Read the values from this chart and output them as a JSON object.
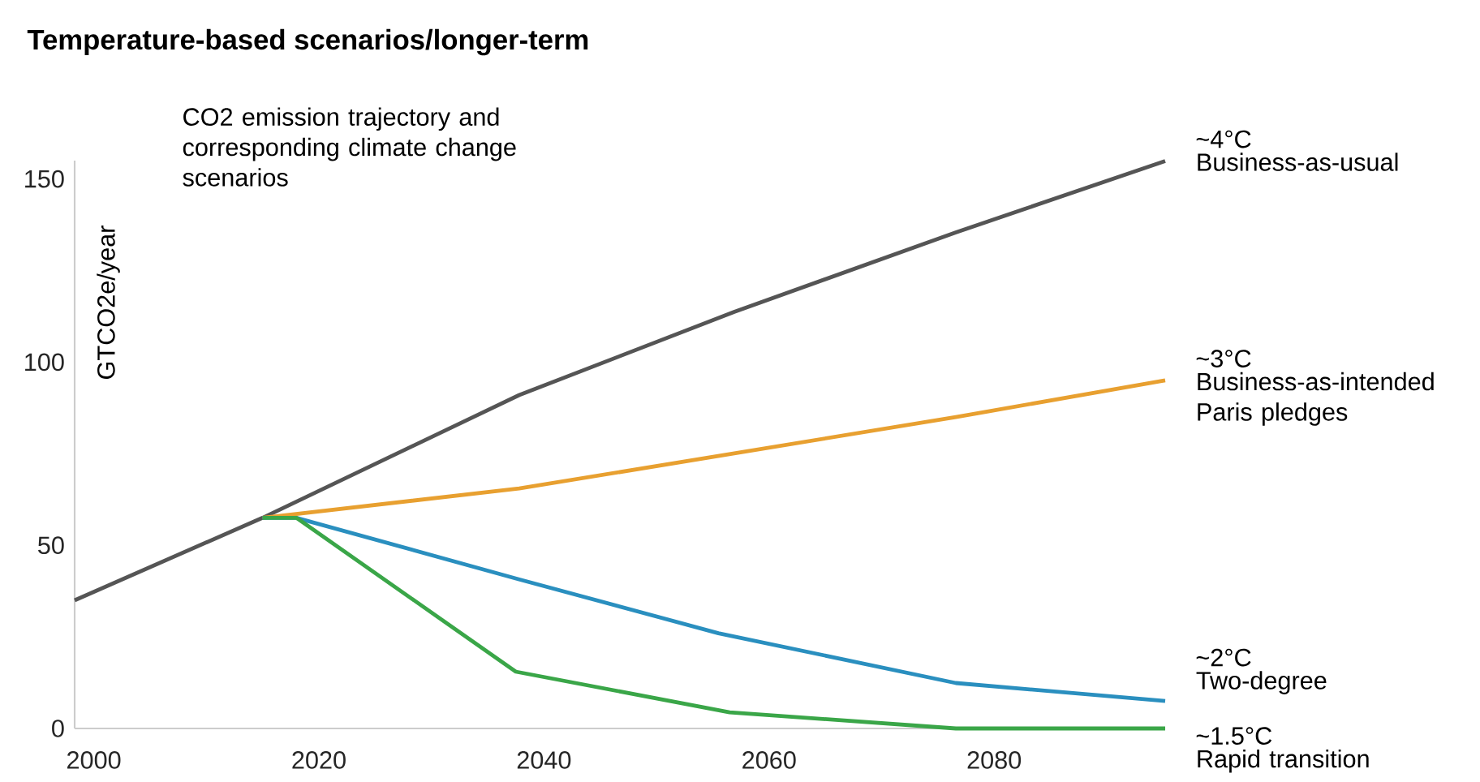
{
  "chart_data": {
    "type": "line",
    "title": "Temperature-based scenarios/longer-term",
    "ylabel": "GTCO2e/year",
    "annotations": [
      "CO2 emission trajectory and corresponding climate change scenarios",
      "~4°C",
      "~3°C",
      "~2°C",
      "~1.5°C"
    ],
    "series": [
      {
        "name": "Business-as-usual",
        "color": "#555555",
        "x": [
          1998.3,
          2015,
          2037.8,
          2056.9,
          2076.6,
          2095.2
        ],
        "values": [
          35,
          57.5,
          91,
          113.7,
          135.4,
          154.9
        ]
      },
      {
        "name": "Business-as-intended Paris pledges",
        "color": "#e8a030",
        "x": [
          2015,
          2037.8,
          2076.6,
          2095.2
        ],
        "values": [
          57.5,
          65.5,
          85,
          95
        ]
      },
      {
        "name": "Two-degree",
        "color": "#2a8fbf",
        "x": [
          2015,
          2018,
          2037.8,
          2055.5,
          2076.6,
          2095.2
        ],
        "values": [
          57.5,
          57.5,
          40.7,
          26,
          12.4,
          7.5
        ]
      },
      {
        "name": "Rapid transition",
        "color": "#3aa648",
        "x": [
          2015,
          2018,
          2037.5,
          2056.5,
          2076.6,
          2095.2
        ],
        "values": [
          57.5,
          57.5,
          15.5,
          4.4,
          0,
          0
        ]
      }
    ],
    "xlim": [
      1998.3,
      2095.2
    ],
    "ylim": [
      0,
      155
    ],
    "xticks": [
      2000,
      2020,
      2040,
      2060,
      2080
    ],
    "yticks": [
      0,
      50,
      100,
      150
    ],
    "legend": false,
    "grid": false,
    "marker": "none",
    "line_style": "solid"
  }
}
